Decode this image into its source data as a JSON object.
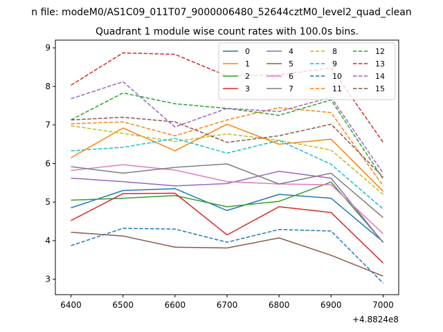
{
  "figure": {
    "suptitle": "n file: modeM0/AS1C09_011T07_9000006480_52644cztM0_level2_quad_clean",
    "axis_offset_label": "+4.8824e8"
  },
  "chart_data": {
    "type": "line",
    "title": "Quadrant 1 module wise count rates with 100.0s bins.",
    "xlabel": "",
    "ylabel": "",
    "x": [
      6400,
      6500,
      6600,
      6700,
      6800,
      6900,
      7000
    ],
    "x_offset": 488240000,
    "xlim": [
      6370,
      7030
    ],
    "ylim": [
      2.6,
      9.2
    ],
    "xticks": [
      6400,
      6500,
      6600,
      6700,
      6800,
      6900,
      7000
    ],
    "yticks": [
      3,
      4,
      5,
      6,
      7,
      8,
      9
    ],
    "grid": false,
    "legend": {
      "placement": "top-right",
      "columns": 4
    },
    "series": [
      {
        "name": "0",
        "color": "#1f77b4",
        "dash": "solid",
        "values": [
          4.85,
          5.3,
          5.35,
          4.78,
          5.2,
          5.1,
          3.97
        ]
      },
      {
        "name": "1",
        "color": "#ff7f0e",
        "dash": "solid",
        "values": [
          6.15,
          6.92,
          6.33,
          7.02,
          6.5,
          6.63,
          5.28
        ]
      },
      {
        "name": "2",
        "color": "#2ca02c",
        "dash": "solid",
        "values": [
          5.05,
          5.1,
          5.17,
          4.88,
          5.02,
          5.52,
          3.96
        ]
      },
      {
        "name": "3",
        "color": "#d62728",
        "dash": "solid",
        "values": [
          4.52,
          5.22,
          5.23,
          4.15,
          4.88,
          4.73,
          3.42
        ]
      },
      {
        "name": "4",
        "color": "#9467bd",
        "dash": "solid",
        "values": [
          5.62,
          5.53,
          5.42,
          5.48,
          5.8,
          5.62,
          3.95
        ]
      },
      {
        "name": "5",
        "color": "#8c564b",
        "dash": "solid",
        "values": [
          4.22,
          4.12,
          3.83,
          3.81,
          4.07,
          3.62,
          3.08
        ]
      },
      {
        "name": "6",
        "color": "#e377c2",
        "dash": "solid",
        "values": [
          5.82,
          5.97,
          5.83,
          5.53,
          5.47,
          5.45,
          4.18
        ]
      },
      {
        "name": "7",
        "color": "#7f7f7f",
        "dash": "solid",
        "values": [
          5.92,
          5.75,
          5.9,
          5.99,
          5.47,
          5.75,
          4.6
        ]
      },
      {
        "name": "8",
        "color": "#bcbd22",
        "dash": "dashed",
        "values": [
          6.98,
          6.78,
          6.57,
          6.77,
          6.6,
          6.35,
          5.2
        ]
      },
      {
        "name": "9",
        "color": "#17becf",
        "dash": "dashed",
        "values": [
          6.33,
          6.42,
          6.65,
          6.27,
          6.6,
          5.98,
          4.82
        ]
      },
      {
        "name": "10",
        "color": "#1f77b4",
        "dash": "dashed",
        "values": [
          3.87,
          4.32,
          4.3,
          3.96,
          4.29,
          4.25,
          2.9
        ]
      },
      {
        "name": "11",
        "color": "#ff7f0e",
        "dash": "dashed",
        "values": [
          7.03,
          7.08,
          6.72,
          7.13,
          7.45,
          7.32,
          5.42
        ]
      },
      {
        "name": "12",
        "color": "#2ca02c",
        "dash": "dashed",
        "values": [
          7.13,
          7.83,
          7.55,
          7.43,
          7.25,
          7.65,
          5.6
        ]
      },
      {
        "name": "13",
        "color": "#d62728",
        "dash": "dashed",
        "values": [
          8.03,
          8.87,
          8.83,
          8.27,
          8.3,
          8.48,
          6.55
        ]
      },
      {
        "name": "14",
        "color": "#9467bd",
        "dash": "dashed",
        "values": [
          7.68,
          8.12,
          6.95,
          7.43,
          7.35,
          7.72,
          5.75
        ]
      },
      {
        "name": "15",
        "color": "#8c564b",
        "dash": "dashed",
        "values": [
          7.13,
          7.2,
          7.08,
          6.55,
          6.72,
          7.02,
          5.65
        ]
      }
    ]
  }
}
